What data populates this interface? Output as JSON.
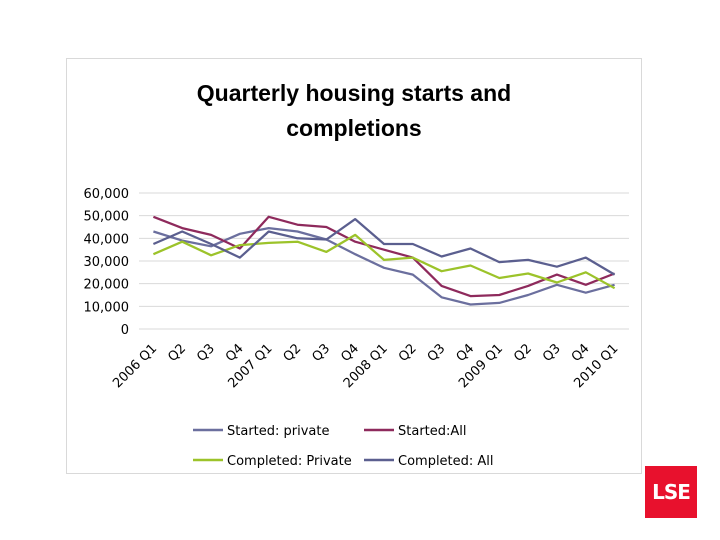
{
  "chart_data": {
    "type": "line",
    "title_lines": [
      "Quarterly housing starts and",
      "completions"
    ],
    "categories": [
      "2006 Q1",
      "Q2",
      "Q3",
      "Q4",
      "2007 Q1",
      "Q2",
      "Q3",
      "Q4",
      "2008 Q1",
      "Q2",
      "Q3",
      "Q4",
      "2009 Q1",
      "Q2",
      "Q3",
      "Q4",
      "2010 Q1"
    ],
    "ylim": [
      0,
      60000
    ],
    "yticks": [
      0,
      10000,
      20000,
      30000,
      40000,
      50000,
      60000
    ],
    "ytick_labels": [
      "0",
      "10,000",
      "20,000",
      "30,000",
      "40,000",
      "50,000",
      "60,000"
    ],
    "grid": true,
    "legend_position": "bottom",
    "series": [
      {
        "name": "Started: private",
        "color": "#6b6f9e",
        "values": [
          43000,
          39000,
          36500,
          42000,
          44500,
          43000,
          39500,
          33000,
          27000,
          24000,
          14000,
          10800,
          11500,
          15000,
          19500,
          16000,
          19500
        ]
      },
      {
        "name": "Started:All",
        "color": "#8e2a5c",
        "values": [
          49500,
          44500,
          41500,
          35500,
          49500,
          46000,
          45000,
          38500,
          35000,
          31500,
          19000,
          14500,
          15000,
          19000,
          24000,
          19500,
          24500
        ]
      },
      {
        "name": "Completed: Private",
        "color": "#9cc32a",
        "values": [
          33000,
          38500,
          32500,
          37000,
          38000,
          38500,
          34000,
          41500,
          30500,
          31500,
          25500,
          28000,
          22500,
          24500,
          20500,
          25000,
          18000
        ]
      },
      {
        "name": "Completed: All",
        "color": "#5b5f8f",
        "values": [
          37500,
          43000,
          37500,
          31500,
          43000,
          40000,
          39500,
          48500,
          37500,
          37500,
          32000,
          35500,
          29500,
          30500,
          27500,
          31500,
          24000
        ]
      }
    ]
  },
  "logo": {
    "text": "LSE",
    "color": "#e8112d"
  }
}
